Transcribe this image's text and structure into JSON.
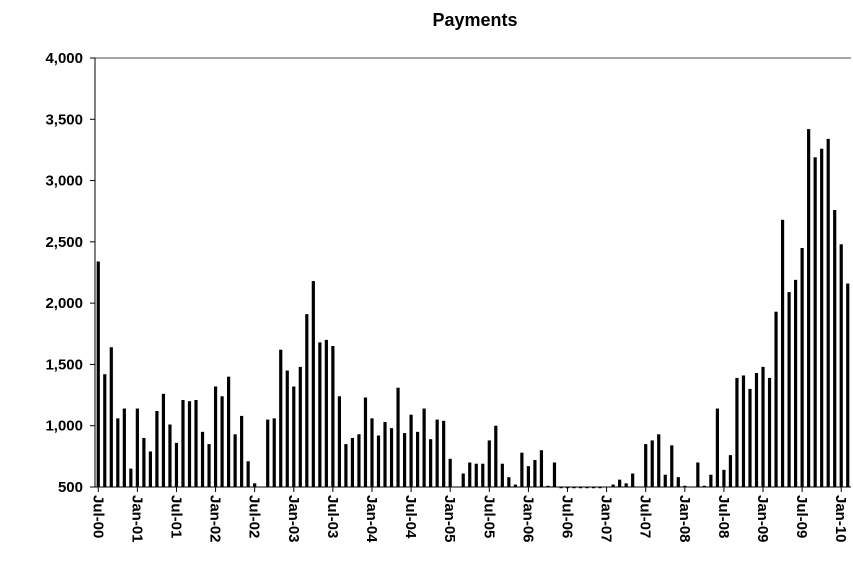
{
  "chart_data": {
    "type": "bar",
    "title": "Payments",
    "categories": [
      "Jul-00",
      null,
      null,
      null,
      null,
      null,
      "Jan-01",
      null,
      null,
      null,
      null,
      null,
      "Jul-01",
      null,
      null,
      null,
      null,
      null,
      "Jan-02",
      null,
      null,
      null,
      null,
      null,
      "Jul-02",
      null,
      null,
      null,
      null,
      null,
      "Jan-03",
      null,
      null,
      null,
      null,
      null,
      "Jul-03",
      null,
      null,
      null,
      null,
      null,
      "Jan-04",
      null,
      null,
      null,
      null,
      null,
      "Jul-04",
      null,
      null,
      null,
      null,
      null,
      "Jan-05",
      null,
      null,
      null,
      null,
      null,
      "Jul-05",
      null,
      null,
      null,
      null,
      null,
      "Jan-06",
      null,
      null,
      null,
      null,
      null,
      "Jul-06",
      null,
      null,
      null,
      null,
      null,
      "Jan-07",
      null,
      null,
      null,
      null,
      null,
      "Jul-07",
      null,
      null,
      null,
      null,
      null,
      "Jan-08",
      null,
      null,
      null,
      null,
      null,
      "Jul-08",
      null,
      null,
      null,
      null,
      null,
      "Jan-09",
      null,
      null,
      null,
      null,
      null,
      "Jul-09",
      null,
      null,
      null,
      null,
      null,
      "Jan-10",
      null
    ],
    "values": [
      2340,
      1420,
      1640,
      1060,
      1140,
      650,
      1140,
      900,
      790,
      1120,
      1260,
      1010,
      860,
      1210,
      1200,
      1210,
      950,
      850,
      1320,
      1240,
      1400,
      930,
      1080,
      710,
      530,
      500,
      1050,
      1060,
      1620,
      1450,
      1320,
      1480,
      1910,
      2180,
      1680,
      1700,
      1650,
      1240,
      850,
      900,
      930,
      1230,
      1060,
      920,
      1030,
      980,
      1310,
      940,
      1090,
      950,
      1140,
      890,
      1050,
      1040,
      730,
      500,
      610,
      700,
      690,
      690,
      880,
      1000,
      690,
      580,
      520,
      780,
      670,
      720,
      800,
      510,
      700,
      490,
      490,
      490,
      490,
      490,
      490,
      490,
      500,
      520,
      560,
      530,
      610,
      500,
      850,
      880,
      930,
      600,
      840,
      580,
      510,
      500,
      700,
      510,
      600,
      1140,
      640,
      760,
      1390,
      1410,
      1300,
      1430,
      1480,
      1390,
      1930,
      2680,
      2090,
      2190,
      2450,
      3420,
      3190,
      3260,
      3340,
      2760,
      2480,
      2160
    ],
    "color": "#000000",
    "ylim": [
      500,
      4000
    ],
    "yticks": [
      {
        "value": 500,
        "label": "500"
      },
      {
        "value": 1000,
        "label": "1,000"
      },
      {
        "value": 1500,
        "label": "1,500"
      },
      {
        "value": 2000,
        "label": "2,000"
      },
      {
        "value": 2500,
        "label": "2,500"
      },
      {
        "value": 3000,
        "label": "3,000"
      },
      {
        "value": 3500,
        "label": "3,500"
      },
      {
        "value": 4000,
        "label": "4,000"
      }
    ],
    "grid": false
  }
}
